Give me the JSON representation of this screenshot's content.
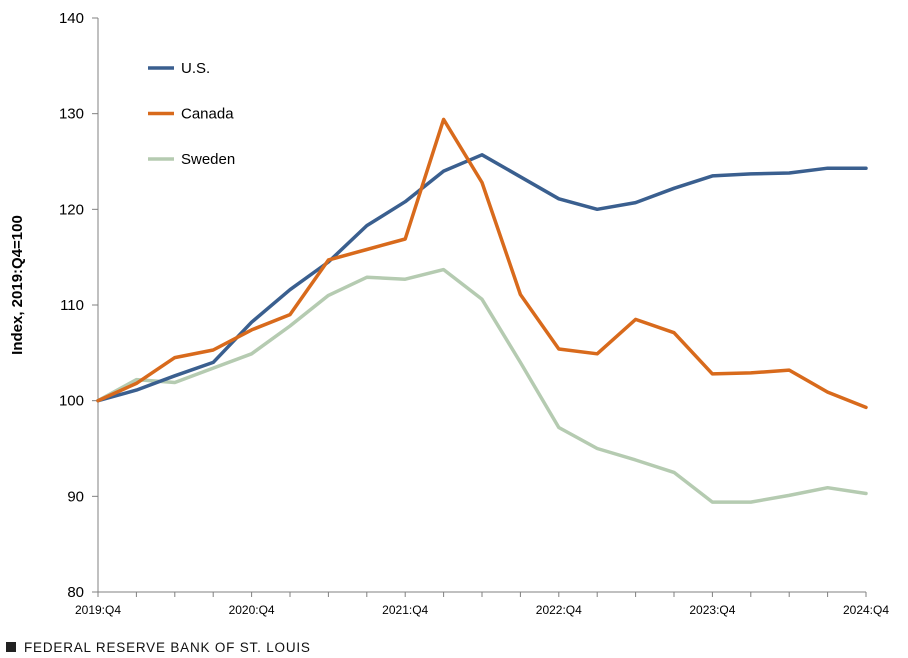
{
  "chart_data": {
    "type": "line",
    "ylabel": "Index, 2019:Q4=100",
    "ylim": [
      80,
      140
    ],
    "yticks": [
      80,
      90,
      100,
      110,
      120,
      130,
      140
    ],
    "x": [
      "2019:Q4",
      "2020:Q1",
      "2020:Q2",
      "2020:Q3",
      "2020:Q4",
      "2021:Q1",
      "2021:Q2",
      "2021:Q3",
      "2021:Q4",
      "2022:Q1",
      "2022:Q2",
      "2022:Q3",
      "2022:Q4",
      "2023:Q1",
      "2023:Q2",
      "2023:Q3",
      "2023:Q4",
      "2024:Q1",
      "2024:Q2",
      "2024:Q3",
      "2024:Q4"
    ],
    "xtick_labels": [
      "2019:Q4",
      "2020:Q4",
      "2021:Q4",
      "2022:Q4",
      "2023:Q4",
      "2024:Q4"
    ],
    "grid": false,
    "legend_position": "top-left",
    "series": [
      {
        "name": "U.S.",
        "color": "#3a5f8f",
        "values": [
          100,
          101.1,
          102.6,
          104.0,
          108.2,
          111.6,
          114.5,
          118.3,
          120.8,
          124.0,
          125.7,
          123.4,
          121.1,
          120.0,
          120.7,
          122.2,
          123.5,
          123.7,
          123.8,
          124.3,
          124.3
        ]
      },
      {
        "name": "Canada",
        "color": "#d86a1c",
        "values": [
          100,
          101.8,
          104.5,
          105.3,
          107.4,
          109.0,
          114.7,
          115.8,
          116.9,
          129.4,
          122.8,
          111.1,
          105.4,
          104.9,
          108.5,
          107.1,
          102.8,
          102.9,
          103.2,
          100.9,
          99.3
        ]
      },
      {
        "name": "Sweden",
        "color": "#b5cbb1",
        "values": [
          100,
          102.2,
          101.9,
          103.4,
          104.9,
          107.8,
          111.0,
          112.9,
          112.7,
          113.7,
          110.6,
          104.0,
          97.2,
          95.0,
          93.8,
          92.5,
          89.4,
          89.4,
          90.1,
          90.9,
          90.3
        ]
      }
    ]
  },
  "footer": {
    "source": "FEDERAL RESERVE BANK OF ST. LOUIS"
  }
}
